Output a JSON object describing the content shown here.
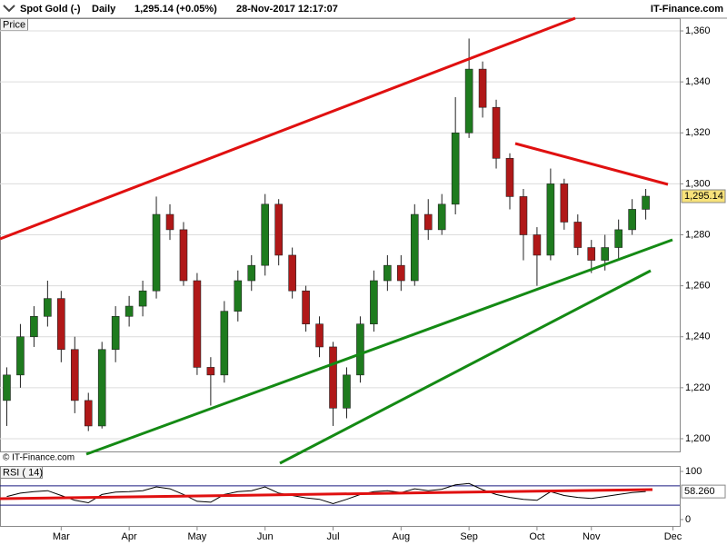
{
  "header": {
    "symbol": "Spot Gold (-)",
    "period": "Daily",
    "quote": "1,295.14 (+0.05%)",
    "timestamp": "28-Nov-2017 12:17:07",
    "brand": "IT-Finance.com"
  },
  "chart_data": [
    {
      "type": "candlestick",
      "axis_title": "Price",
      "copyright": "© IT-Finance.com",
      "categories": [
        null,
        null,
        null,
        null,
        "Mar",
        null,
        null,
        null,
        null,
        "Apr",
        null,
        null,
        null,
        null,
        "May",
        null,
        null,
        null,
        null,
        "Jun",
        null,
        null,
        null,
        null,
        "Jul",
        null,
        null,
        null,
        null,
        "Aug",
        null,
        null,
        null,
        null,
        "Sep",
        null,
        null,
        null,
        null,
        "Oct",
        null,
        null,
        null,
        "Nov",
        null,
        null,
        null,
        null,
        null,
        "Dec"
      ],
      "open": [
        1215,
        1225,
        1240,
        1248,
        1255,
        1235,
        1215,
        1205,
        1235,
        1248,
        1252,
        1258,
        1288,
        1282,
        1262,
        1228,
        1225,
        1250,
        1262,
        1268,
        1292,
        1272,
        1258,
        1245,
        1236,
        1212,
        1225,
        1245,
        1262,
        1268,
        1262,
        1288,
        1282,
        1292,
        1320,
        1345,
        1330,
        1310,
        1295,
        1280,
        1272,
        1300,
        1285,
        1275,
        1270,
        1275,
        1282,
        1290,
        null,
        null
      ],
      "high": [
        1228,
        1245,
        1252,
        1262,
        1258,
        1240,
        1218,
        1238,
        1252,
        1256,
        1262,
        1295,
        1292,
        1285,
        1265,
        1232,
        1254,
        1266,
        1272,
        1296,
        1294,
        1275,
        1260,
        1248,
        1238,
        1228,
        1248,
        1266,
        1272,
        1272,
        1292,
        1294,
        1296,
        1334,
        1357,
        1348,
        1333,
        1312,
        1298,
        1283,
        1306,
        1302,
        1288,
        1278,
        1280,
        1286,
        1294,
        1298,
        null,
        null
      ],
      "low": [
        1205,
        1220,
        1236,
        1244,
        1230,
        1210,
        1203,
        1204,
        1230,
        1244,
        1248,
        1255,
        1278,
        1260,
        1225,
        1213,
        1222,
        1246,
        1258,
        1264,
        1268,
        1255,
        1242,
        1232,
        1205,
        1208,
        1222,
        1242,
        1258,
        1258,
        1260,
        1278,
        1280,
        1288,
        1318,
        1326,
        1306,
        1290,
        1270,
        1260,
        1270,
        1282,
        1272,
        1265,
        1266,
        1270,
        1280,
        1286,
        null,
        null
      ],
      "close": [
        1225,
        1240,
        1248,
        1255,
        1235,
        1215,
        1205,
        1235,
        1248,
        1252,
        1258,
        1288,
        1282,
        1262,
        1228,
        1225,
        1250,
        1262,
        1268,
        1292,
        1272,
        1258,
        1245,
        1236,
        1212,
        1225,
        1245,
        1262,
        1268,
        1262,
        1288,
        1282,
        1292,
        1320,
        1345,
        1330,
        1310,
        1295,
        1280,
        1272,
        1300,
        1285,
        1275,
        1270,
        1275,
        1282,
        1290,
        1295.14,
        null,
        null
      ],
      "up_color": "#1e7b1e",
      "down_color": "#b01818",
      "ylim": [
        1195,
        1365
      ],
      "yticks": [
        {
          "value": 1200,
          "label": "1,200"
        },
        {
          "value": 1220,
          "label": "1,220"
        },
        {
          "value": 1240,
          "label": "1,240"
        },
        {
          "value": 1260,
          "label": "1,260"
        },
        {
          "value": 1280,
          "label": "1,280"
        },
        {
          "value": 1300,
          "label": "1,300"
        },
        {
          "value": 1320,
          "label": "1,320"
        },
        {
          "value": 1340,
          "label": "1,340"
        },
        {
          "value": 1360,
          "label": "1,360"
        }
      ],
      "last_price": {
        "value": 1295.14,
        "label": "1,295.14"
      },
      "grid": true
    },
    {
      "type": "line",
      "title": "RSI ( 14)",
      "color": "#000000",
      "values": [
        48,
        55,
        58,
        60,
        50,
        40,
        35,
        52,
        57,
        58,
        60,
        68,
        64,
        52,
        38,
        36,
        52,
        58,
        60,
        68,
        55,
        50,
        45,
        42,
        33,
        42,
        52,
        58,
        60,
        56,
        64,
        60,
        63,
        72,
        75,
        62,
        52,
        46,
        42,
        40,
        58,
        50,
        46,
        44,
        48,
        52,
        56,
        58.26,
        null,
        null
      ],
      "ylim": [
        0,
        100
      ],
      "yticks": [
        0,
        100
      ],
      "levels": [
        30,
        70
      ],
      "last_value": {
        "value": 58.26,
        "label": "58.260"
      }
    }
  ]
}
